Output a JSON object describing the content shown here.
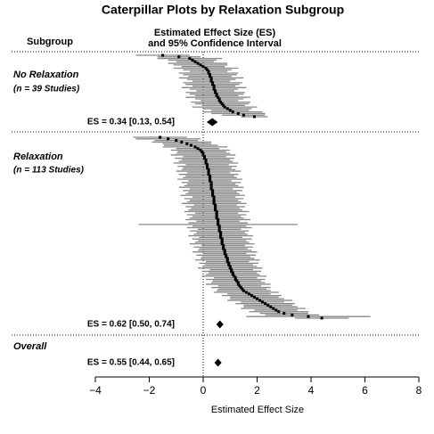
{
  "chart_data": {
    "type": "caterpillar",
    "title": "Caterpillar Plots by Relaxation Subgroup",
    "column_header": "Subgroup",
    "effect_header": [
      "Estimated Effect Size (ES)",
      "and 95% Confidence Interval"
    ],
    "xlabel": "Estimated Effect Size",
    "xlim": [
      -4,
      8
    ],
    "xticks": [
      {
        "value": -4,
        "label": "−4"
      },
      {
        "value": -2,
        "label": "−2"
      },
      0,
      2,
      4,
      6,
      8
    ],
    "refline": 0,
    "point_color": "#000000",
    "ci_color": "#888888",
    "groups": [
      {
        "name": "No Relaxation",
        "subtitle": "(n = 39 Studies)",
        "estimates": [
          -1.5,
          -0.9,
          -0.5,
          -0.4,
          -0.3,
          -0.2,
          -0.1,
          0,
          0.1,
          0.15,
          0.2,
          0.2,
          0.25,
          0.25,
          0.3,
          0.3,
          0.3,
          0.35,
          0.35,
          0.4,
          0.4,
          0.4,
          0.45,
          0.45,
          0.5,
          0.5,
          0.55,
          0.6,
          0.6,
          0.65,
          0.7,
          0.75,
          0.8,
          0.9,
          1.0,
          1.1,
          1.3,
          1.5,
          1.9
        ],
        "lower": [
          -2.5,
          -1.7,
          -1.7,
          -1.3,
          -1.0,
          -1.3,
          -1.1,
          -0.8,
          -1.1,
          -0.75,
          -0.5,
          -0.9,
          -0.75,
          -0.55,
          -0.9,
          -0.6,
          -0.4,
          -0.75,
          -0.65,
          -0.4,
          -0.8,
          -0.5,
          -0.25,
          -0.65,
          -0.5,
          -0.3,
          -0.65,
          -0.3,
          -0.1,
          -0.45,
          -0.3,
          -0.05,
          -0.4,
          0,
          0.3,
          0,
          0.3,
          0.7,
          1.4
        ],
        "upper": [
          -0.5,
          -0.1,
          0.7,
          0.5,
          0.4,
          0.9,
          0.9,
          0.8,
          1.3,
          1.05,
          0.9,
          1.3,
          1.25,
          1.05,
          1.5,
          1.2,
          1.0,
          1.45,
          1.35,
          1.2,
          1.6,
          1.3,
          1.15,
          1.55,
          1.5,
          1.3,
          1.75,
          1.5,
          1.3,
          1.75,
          1.7,
          1.55,
          2.0,
          1.8,
          1.7,
          2.2,
          2.3,
          2.3,
          2.4
        ],
        "summary": {
          "label": "ES = 0.34 [0.13, 0.54]",
          "es": 0.34,
          "lower": 0.13,
          "upper": 0.54
        }
      },
      {
        "name": "Relaxation",
        "subtitle": "(n = 113 Studies)",
        "estimates": [
          -1.6,
          -1.3,
          -1.0,
          -0.8,
          -0.6,
          -0.45,
          -0.3,
          -0.2,
          -0.1,
          -0.05,
          0,
          0,
          0.05,
          0.05,
          0.1,
          0.1,
          0.1,
          0.15,
          0.15,
          0.15,
          0.2,
          0.2,
          0.2,
          0.2,
          0.25,
          0.25,
          0.25,
          0.25,
          0.3,
          0.3,
          0.3,
          0.3,
          0.3,
          0.35,
          0.35,
          0.35,
          0.35,
          0.4,
          0.4,
          0.4,
          0.4,
          0.4,
          0.45,
          0.45,
          0.45,
          0.45,
          0.5,
          0.5,
          0.5,
          0.5,
          0.5,
          0.55,
          0.55,
          0.55,
          0.55,
          0.6,
          0.6,
          0.6,
          0.6,
          0.65,
          0.65,
          0.65,
          0.65,
          0.7,
          0.7,
          0.7,
          0.7,
          0.75,
          0.75,
          0.75,
          0.8,
          0.8,
          0.8,
          0.85,
          0.85,
          0.9,
          0.9,
          0.9,
          0.95,
          0.95,
          1.0,
          1.0,
          1.05,
          1.05,
          1.1,
          1.1,
          1.15,
          1.2,
          1.2,
          1.25,
          1.3,
          1.3,
          1.35,
          1.4,
          1.45,
          1.5,
          1.6,
          1.7,
          1.8,
          1.9,
          2.0,
          2.1,
          2.2,
          2.3,
          2.4,
          2.5,
          2.6,
          2.7,
          2.8,
          3.0,
          3.3,
          3.9,
          4.4
        ],
        "lower": [
          -2.6,
          -2.5,
          -1.8,
          -1.9,
          -1.5,
          -1.45,
          -1.5,
          -1.0,
          -1.2,
          -0.95,
          -1,
          -1.2,
          -0.75,
          -1.05,
          -0.8,
          -0.9,
          -1.1,
          -0.65,
          -0.95,
          -0.75,
          -0.8,
          -1.0,
          -0.6,
          -0.9,
          -0.65,
          -0.75,
          -0.95,
          -0.55,
          -0.8,
          -0.6,
          -0.7,
          -0.9,
          -0.5,
          -0.75,
          -0.55,
          -0.65,
          -0.85,
          -0.4,
          -0.7,
          -0.5,
          -0.6,
          -0.8,
          -0.35,
          -0.65,
          -0.45,
          -0.55,
          -0.7,
          -0.3,
          -0.6,
          -0.4,
          -0.5,
          -0.65,
          -0.25,
          -0.55,
          -2.4,
          -0.4,
          -0.6,
          -0.2,
          -0.5,
          -0.25,
          -0.35,
          -0.55,
          -0.15,
          -0.4,
          -0.2,
          -0.3,
          -0.5,
          -0.05,
          -0.35,
          -0.15,
          -0.2,
          -0.4,
          0,
          -0.25,
          -0.05,
          -0.1,
          -0.3,
          0.1,
          -0.15,
          0.05,
          0,
          -0.2,
          0.25,
          -0.05,
          0.2,
          0.1,
          -0.05,
          0.4,
          0.1,
          0.35,
          0.3,
          0.1,
          0.55,
          0.3,
          0.55,
          0.5,
          0.4,
          0.9,
          0.7,
          1.0,
          1.0,
          0.9,
          1.4,
          1.2,
          1.5,
          1.5,
          1.4,
          1.9,
          1.7,
          2.1,
          2.3,
          1.6,
          3.4
        ],
        "upper": [
          -0.6,
          -0.1,
          -0.2,
          0.3,
          0.3,
          0.55,
          0.9,
          0.6,
          1.0,
          0.85,
          1,
          1.2,
          0.85,
          1.15,
          1.0,
          1.1,
          1.3,
          0.95,
          1.25,
          1.05,
          1.2,
          1.4,
          1.0,
          1.3,
          1.15,
          1.25,
          1.45,
          1.05,
          1.4,
          1.2,
          1.3,
          1.5,
          1.1,
          1.45,
          1.25,
          1.35,
          1.55,
          1.2,
          1.5,
          1.3,
          1.4,
          1.6,
          1.25,
          1.55,
          1.35,
          1.45,
          1.7,
          1.3,
          1.6,
          1.4,
          1.5,
          1.75,
          1.35,
          1.65,
          3.5,
          1.6,
          1.8,
          1.4,
          1.7,
          1.55,
          1.65,
          1.85,
          1.45,
          1.8,
          1.6,
          1.7,
          1.9,
          1.55,
          1.85,
          1.65,
          1.8,
          2.0,
          1.6,
          1.95,
          1.75,
          1.9,
          2.1,
          1.7,
          2.05,
          1.85,
          2,
          2.2,
          1.85,
          2.15,
          2.0,
          2.1,
          2.35,
          2.0,
          2.3,
          2.15,
          2.3,
          2.5,
          2.15,
          2.5,
          2.35,
          2.5,
          2.8,
          2.5,
          2.9,
          2.8,
          3.0,
          3.3,
          3.0,
          3.4,
          3.3,
          3.5,
          3.8,
          3.5,
          3.9,
          3.9,
          4.3,
          6.2,
          5.4
        ],
        "summary": {
          "label": "ES = 0.62 [0.50, 0.74]",
          "es": 0.62,
          "lower": 0.5,
          "upper": 0.74
        }
      },
      {
        "name": "Overall",
        "summary": {
          "label": "ES = 0.55 [0.44, 0.65]",
          "es": 0.55,
          "lower": 0.44,
          "upper": 0.65
        }
      }
    ]
  }
}
